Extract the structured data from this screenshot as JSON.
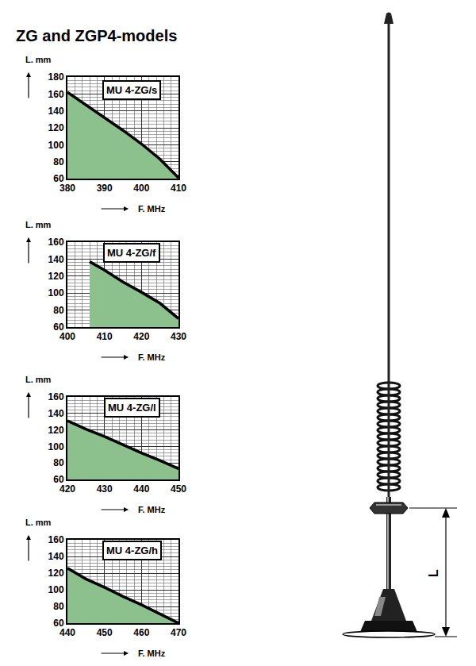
{
  "title": "ZG and ZGP4-models",
  "chart_data": [
    {
      "type": "area",
      "title": "MU 4-ZG/s",
      "x_label": "F. MHz",
      "y_label": "L. mm",
      "x": [
        380,
        385,
        390,
        395,
        400,
        405,
        410
      ],
      "values": [
        162,
        147,
        132,
        117,
        101,
        83,
        61
      ],
      "xlim": [
        380,
        410
      ],
      "ylim": [
        60,
        180
      ],
      "xticks": [
        380,
        390,
        400,
        410
      ],
      "yticks": [
        60,
        80,
        100,
        120,
        140,
        160,
        180
      ],
      "grid": true,
      "color": "#8cc08c"
    },
    {
      "type": "area",
      "title": "MU 4-ZG/f",
      "x_label": "F. MHz",
      "y_label": "L. mm",
      "x": [
        406,
        410,
        415,
        420,
        425,
        430
      ],
      "values": [
        137,
        127,
        113,
        101,
        88,
        70
      ],
      "xlim": [
        400,
        430
      ],
      "ylim": [
        60,
        160
      ],
      "xticks": [
        400,
        410,
        420,
        430
      ],
      "yticks": [
        60,
        80,
        100,
        120,
        140,
        160
      ],
      "grid": true,
      "color": "#8cc08c"
    },
    {
      "type": "area",
      "title": "MU 4-ZG/l",
      "x_label": "F. MHz",
      "y_label": "L. mm",
      "x": [
        420,
        425,
        430,
        435,
        440,
        445,
        450
      ],
      "values": [
        131,
        121,
        112,
        102,
        92,
        83,
        73
      ],
      "xlim": [
        420,
        450
      ],
      "ylim": [
        60,
        160
      ],
      "xticks": [
        420,
        430,
        440,
        450
      ],
      "yticks": [
        60,
        80,
        100,
        120,
        140,
        160
      ],
      "grid": true,
      "color": "#8cc08c"
    },
    {
      "type": "area",
      "title": "MU 4-ZG/h",
      "x_label": "F. MHz",
      "y_label": "L. mm",
      "x": [
        440,
        445,
        450,
        455,
        460,
        465,
        470
      ],
      "values": [
        126,
        113,
        103,
        92,
        82,
        71,
        60
      ],
      "xlim": [
        440,
        470
      ],
      "ylim": [
        60,
        160
      ],
      "xticks": [
        440,
        450,
        460,
        470
      ],
      "yticks": [
        60,
        80,
        100,
        120,
        140,
        160
      ],
      "grid": true,
      "color": "#8cc08c"
    }
  ],
  "diagram": {
    "dimension_label": "L"
  }
}
